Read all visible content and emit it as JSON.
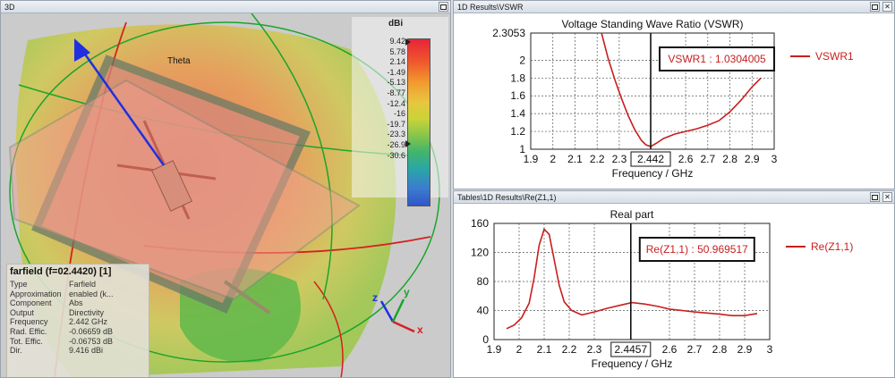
{
  "panels": {
    "view3d": {
      "title": "3D"
    },
    "vswr": {
      "title": "1D Results\\VSWR"
    },
    "rez": {
      "title": "Tables\\1D Results\\Re(Z1,1)"
    }
  },
  "view3d": {
    "axis_label_theta": "Theta",
    "colorbar": {
      "unit": "dBi",
      "ticks": [
        "9.42",
        "5.78",
        "2.14",
        "-1.49",
        "-5.13",
        "-8.77",
        "-12.4",
        "-16",
        "-19.7",
        "-23.3",
        "-26.9",
        "-30.6"
      ]
    },
    "axis_labels": {
      "x": "x",
      "y": "y",
      "z": "z"
    },
    "info": {
      "title": "farfield (f=02.4420) [1]",
      "rows": [
        {
          "k": "Type",
          "v": "Farfield"
        },
        {
          "k": "Approximation",
          "v": "enabled (k..."
        },
        {
          "k": "Component",
          "v": "Abs"
        },
        {
          "k": "Output",
          "v": "Directivity"
        },
        {
          "k": "Frequency",
          "v": "2.442 GHz"
        },
        {
          "k": "Rad. Effic.",
          "v": "-0.06659 dB"
        },
        {
          "k": "Tot. Effic.",
          "v": "-0.06753 dB"
        },
        {
          "k": "Dir.",
          "v": "9.416 dBi"
        }
      ]
    }
  },
  "chart_data": [
    {
      "type": "line",
      "title": "Voltage Standing Wave Ratio (VSWR)",
      "xlabel": "Frequency / GHz",
      "ylabel": "",
      "xlim": [
        1.9,
        3.0
      ],
      "ylim": [
        1.0,
        2.3053
      ],
      "xticks": [
        "1.9",
        "2",
        "2.1",
        "2.2",
        "2.3",
        "2.442",
        "2.6",
        "2.7",
        "2.8",
        "2.9",
        "3"
      ],
      "xtick_values": [
        1.9,
        2.0,
        2.1,
        2.2,
        2.3,
        2.442,
        2.6,
        2.7,
        2.8,
        2.9,
        3.0
      ],
      "yticks": [
        "1",
        "1.2",
        "1.4",
        "1.6",
        "1.8",
        "2",
        "2.3053"
      ],
      "ytick_values": [
        1.0,
        1.2,
        1.4,
        1.6,
        1.8,
        2.0,
        2.3053
      ],
      "marker_x": 2.442,
      "marker_label": "VSWR1 : 1.0304005",
      "series": [
        {
          "name": "VSWR1",
          "color": "#c81e1e",
          "x": [
            2.22,
            2.25,
            2.28,
            2.31,
            2.34,
            2.37,
            2.4,
            2.42,
            2.442,
            2.47,
            2.5,
            2.55,
            2.6,
            2.65,
            2.7,
            2.75,
            2.8,
            2.85,
            2.9,
            2.94
          ],
          "y": [
            2.3053,
            2.02,
            1.78,
            1.57,
            1.38,
            1.22,
            1.1,
            1.05,
            1.03,
            1.07,
            1.12,
            1.17,
            1.2,
            1.23,
            1.27,
            1.32,
            1.42,
            1.55,
            1.7,
            1.8
          ]
        }
      ],
      "grid": true,
      "legend": "right"
    },
    {
      "type": "line",
      "title": "Real part",
      "xlabel": "Frequency / GHz",
      "ylabel": "",
      "xlim": [
        1.9,
        3.0
      ],
      "ylim": [
        0,
        160
      ],
      "xticks": [
        "1.9",
        "2",
        "2.1",
        "2.2",
        "2.3",
        "2.4457",
        "2.6",
        "2.7",
        "2.8",
        "2.9",
        "3"
      ],
      "xtick_values": [
        1.9,
        2.0,
        2.1,
        2.2,
        2.3,
        2.4457,
        2.6,
        2.7,
        2.8,
        2.9,
        3.0
      ],
      "yticks": [
        "0",
        "40",
        "80",
        "120",
        "160"
      ],
      "ytick_values": [
        0,
        40,
        80,
        120,
        160
      ],
      "marker_x": 2.4457,
      "marker_label": "Re(Z1,1) : 50.969517",
      "series": [
        {
          "name": "Re(Z1,1)",
          "color": "#c81e1e",
          "x": [
            1.95,
            1.98,
            2.01,
            2.04,
            2.06,
            2.08,
            2.1,
            2.12,
            2.14,
            2.16,
            2.18,
            2.21,
            2.25,
            2.3,
            2.35,
            2.4,
            2.45,
            2.5,
            2.55,
            2.6,
            2.7,
            2.8,
            2.85,
            2.9,
            2.95
          ],
          "y": [
            15,
            20,
            30,
            50,
            85,
            130,
            152,
            145,
            110,
            75,
            52,
            40,
            34,
            38,
            43,
            47,
            51,
            49,
            46,
            42,
            38,
            35,
            33,
            33,
            36
          ]
        }
      ],
      "grid": true,
      "legend": "right"
    }
  ]
}
